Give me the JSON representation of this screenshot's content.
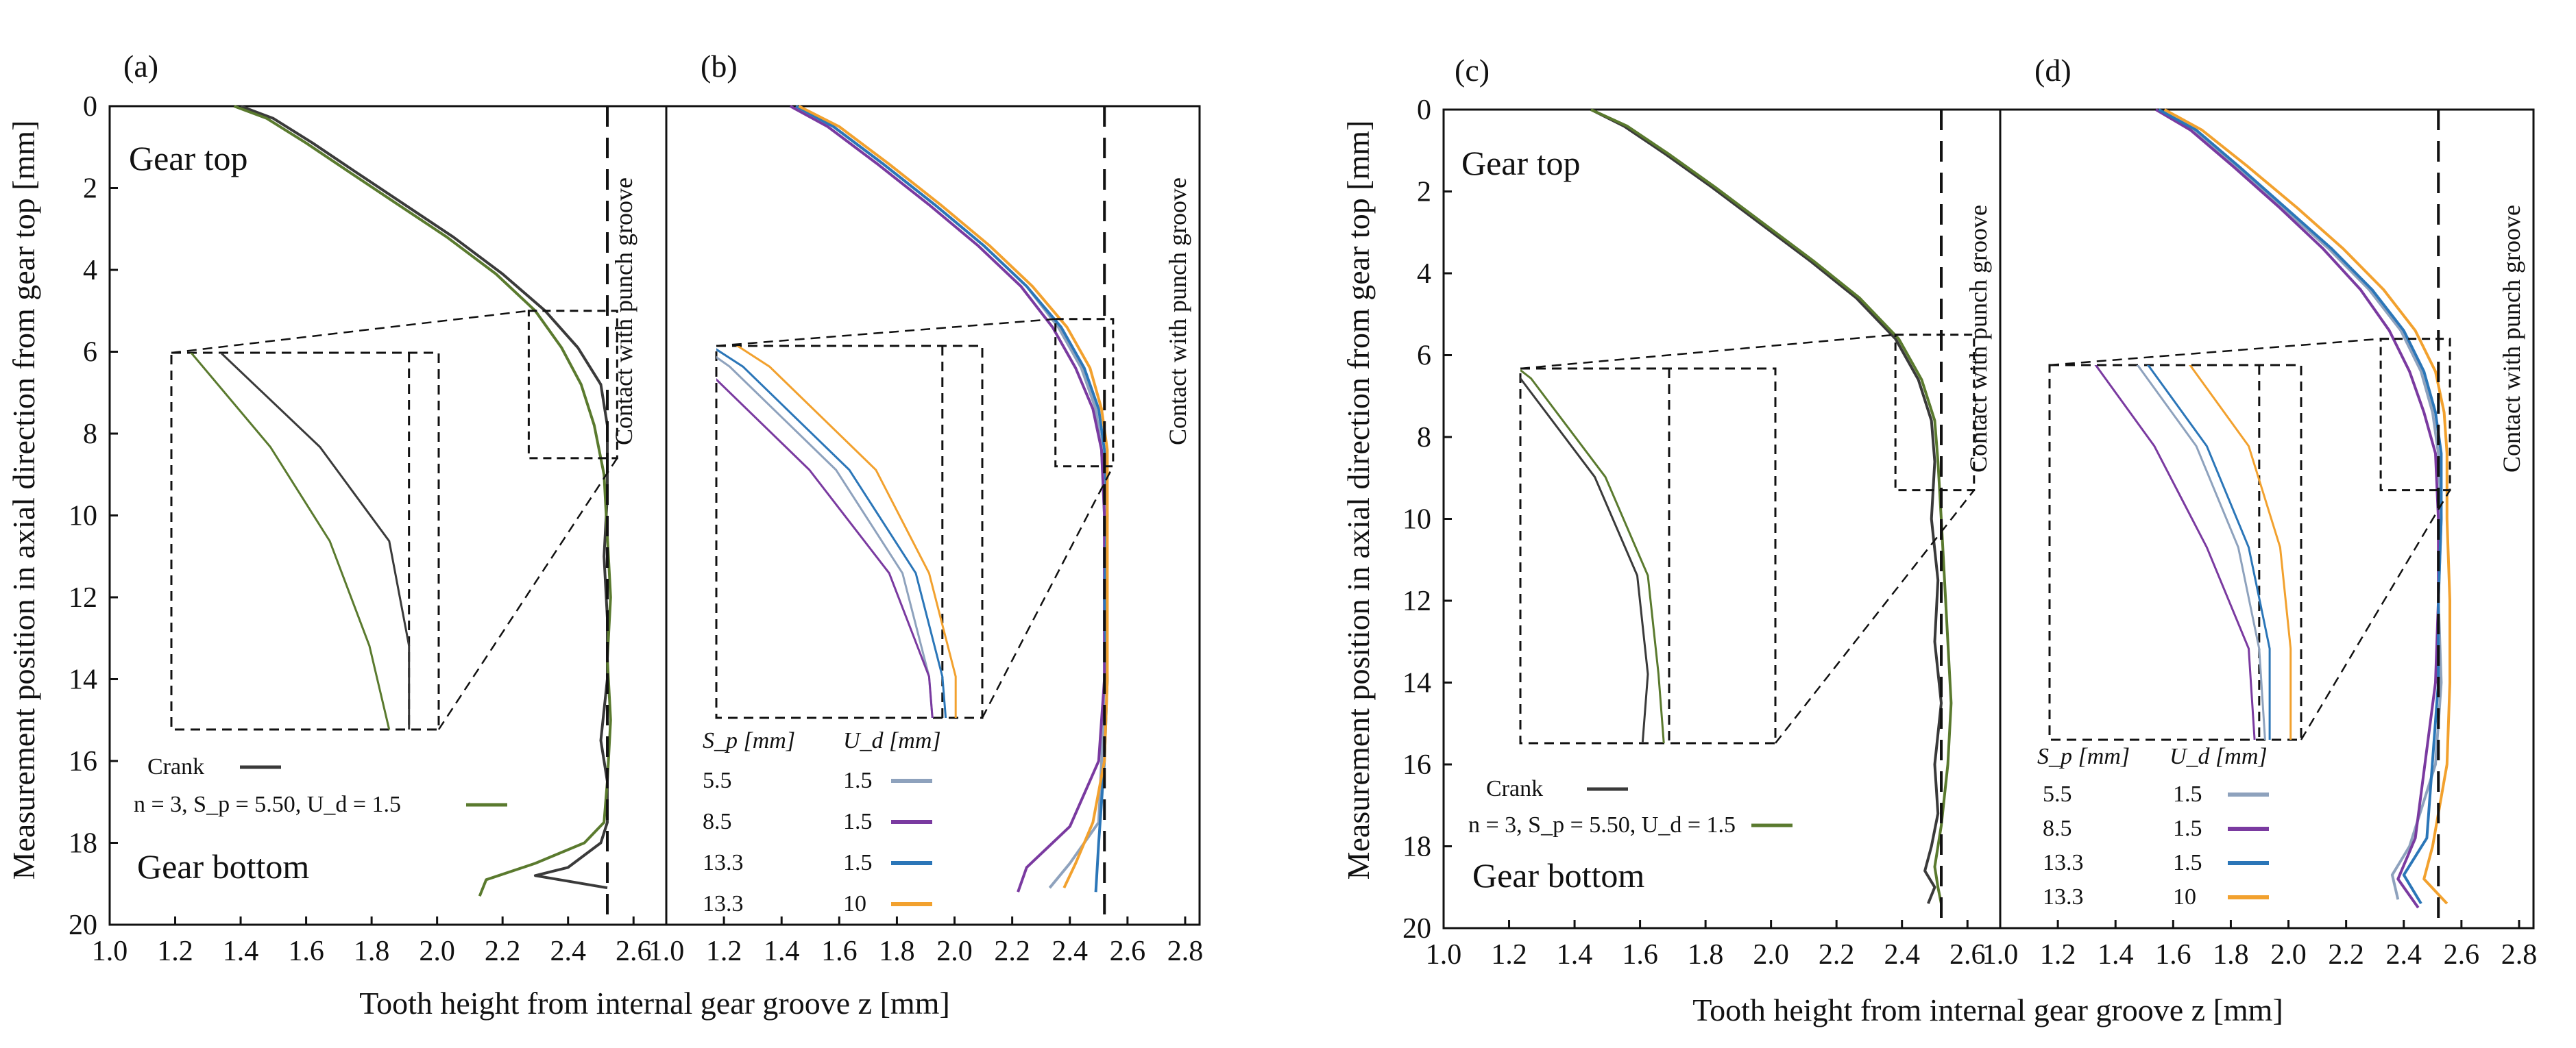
{
  "chart_data": [
    {
      "panel": "(a)",
      "type": "line",
      "xlabel": "Tooth height from internal gear groove z [mm]",
      "ylabel": "Measurement position in axial direction from gear top [mm]",
      "xlim": [
        1.0,
        2.7
      ],
      "ylim": [
        0,
        20
      ],
      "y_inverted": true,
      "xticks": [
        "1.0",
        "1.2",
        "1.4",
        "1.6",
        "1.8",
        "2.0",
        "2.2",
        "2.4",
        "2.6"
      ],
      "yticks": [
        "0",
        "2",
        "4",
        "6",
        "8",
        "10",
        "12",
        "14",
        "16",
        "18",
        "20"
      ],
      "top_annotation": "Gear top",
      "bottom_annotation": "Gear bottom",
      "contact_label": "Contact with punch groove",
      "contact_line_x": 2.52,
      "series": [
        {
          "name": "Crank",
          "color": "#3a3a3a",
          "x": [
            1.4,
            1.5,
            1.62,
            1.75,
            1.9,
            2.05,
            2.2,
            2.33,
            2.43,
            2.5,
            2.52,
            2.52,
            2.51,
            2.52,
            2.52,
            2.5,
            2.52,
            2.52,
            2.5,
            2.4,
            2.3,
            2.52
          ],
          "y": [
            0,
            0.3,
            0.9,
            1.6,
            2.4,
            3.2,
            4.1,
            5.0,
            5.9,
            6.8,
            7.8,
            9.5,
            11,
            12.5,
            14,
            15.5,
            16.5,
            17.5,
            18.0,
            18.6,
            18.8,
            19.1
          ]
        },
        {
          "name": "n = 3, S_p = 5.50, U_d = 1.5",
          "color": "#5a7a2e",
          "x": [
            1.38,
            1.48,
            1.6,
            1.73,
            1.88,
            2.03,
            2.18,
            2.3,
            2.38,
            2.44,
            2.48,
            2.51,
            2.52,
            2.53,
            2.52,
            2.53,
            2.52,
            2.51,
            2.45,
            2.3,
            2.15,
            2.13
          ],
          "y": [
            0,
            0.3,
            0.9,
            1.6,
            2.4,
            3.2,
            4.1,
            5.0,
            5.9,
            6.8,
            7.8,
            9.0,
            10.5,
            12,
            13.5,
            15,
            16.5,
            17.5,
            18.0,
            18.5,
            18.9,
            19.3
          ]
        }
      ],
      "inset": {
        "source_x": [
          2.28,
          2.55
        ],
        "source_y": [
          5.0,
          8.6
        ]
      },
      "legend": [
        {
          "label": "Crank",
          "color": "#3a3a3a"
        },
        {
          "label": "n = 3, S_p = 5.50, U_d = 1.5",
          "color": "#5a7a2e"
        }
      ]
    },
    {
      "panel": "(b)",
      "type": "line",
      "xlabel": "Tooth height from internal gear groove z [mm]",
      "xlim": [
        1.0,
        2.85
      ],
      "ylim": [
        0,
        20
      ],
      "y_inverted": true,
      "xticks": [
        "1.0",
        "1.2",
        "1.4",
        "1.6",
        "1.8",
        "2.0",
        "2.2",
        "2.4",
        "2.6",
        "2.8"
      ],
      "contact_label": "Contact with punch groove",
      "contact_line_x": 2.52,
      "legend_head_sp": "S_p [mm]",
      "legend_head_ud": "U_d [mm]",
      "series": [
        {
          "name": "5.5 / 1.5",
          "sp": "5.5",
          "ud": "1.5",
          "color": "#8ea2bd",
          "x": [
            1.45,
            1.58,
            1.75,
            1.93,
            2.1,
            2.25,
            2.36,
            2.44,
            2.49,
            2.51,
            2.52,
            2.52,
            2.52,
            2.51,
            2.5,
            2.4,
            2.33
          ],
          "y": [
            0,
            0.5,
            1.4,
            2.4,
            3.4,
            4.4,
            5.4,
            6.4,
            7.4,
            8.4,
            10,
            12,
            14,
            16,
            17.5,
            18.5,
            19.1
          ]
        },
        {
          "name": "8.5 / 1.5",
          "sp": "8.5",
          "ud": "1.5",
          "color": "#7a3aa0",
          "x": [
            1.43,
            1.56,
            1.73,
            1.91,
            2.08,
            2.23,
            2.34,
            2.42,
            2.48,
            2.51,
            2.52,
            2.52,
            2.52,
            2.5,
            2.4,
            2.25,
            2.22
          ],
          "y": [
            0,
            0.5,
            1.4,
            2.4,
            3.4,
            4.4,
            5.4,
            6.4,
            7.4,
            8.4,
            10,
            12,
            14,
            16,
            17.6,
            18.6,
            19.2
          ]
        },
        {
          "name": "13.3 / 1.5",
          "sp": "13.3",
          "ud": "1.5",
          "color": "#2b76b8",
          "x": [
            1.45,
            1.58,
            1.75,
            1.93,
            2.1,
            2.25,
            2.37,
            2.45,
            2.5,
            2.52,
            2.53,
            2.52,
            2.53,
            2.52,
            2.5,
            2.49
          ],
          "y": [
            0,
            0.5,
            1.4,
            2.4,
            3.4,
            4.4,
            5.4,
            6.4,
            7.4,
            8.4,
            10,
            12,
            14,
            16,
            18,
            19.2
          ]
        },
        {
          "name": "13.3 / 10",
          "sp": "13.3",
          "ud": "10",
          "color": "#f2a12e",
          "x": [
            1.46,
            1.6,
            1.77,
            1.95,
            2.12,
            2.27,
            2.39,
            2.47,
            2.51,
            2.53,
            2.53,
            2.53,
            2.53,
            2.52,
            2.48,
            2.42,
            2.38
          ],
          "y": [
            0,
            0.5,
            1.4,
            2.4,
            3.4,
            4.4,
            5.4,
            6.4,
            7.4,
            8.4,
            10,
            12,
            14,
            16,
            17.5,
            18.5,
            19.1
          ]
        }
      ],
      "inset": {
        "source_x": [
          2.35,
          2.55
        ],
        "source_y": [
          5.2,
          8.8
        ]
      }
    },
    {
      "panel": "(c)",
      "type": "line",
      "xlabel": "Tooth height from internal gear groove z [mm]",
      "ylabel": "Measurement position in axial direction from gear top  [mm]",
      "xlim": [
        1.0,
        2.7
      ],
      "ylim": [
        0,
        20
      ],
      "y_inverted": true,
      "xticks": [
        "1.0",
        "1.2",
        "1.4",
        "1.6",
        "1.8",
        "2.0",
        "2.2",
        "2.4",
        "2.6"
      ],
      "yticks": [
        "0",
        "2",
        "4",
        "6",
        "8",
        "10",
        "12",
        "14",
        "16",
        "18",
        "20"
      ],
      "top_annotation": "Gear top",
      "bottom_annotation": "Gear bottom",
      "contact_label": "Contact with punch groove",
      "contact_line_x": 2.52,
      "series": [
        {
          "name": "Crank",
          "color": "#3a3a3a",
          "x": [
            1.45,
            1.55,
            1.68,
            1.82,
            1.97,
            2.12,
            2.26,
            2.38,
            2.45,
            2.49,
            2.5,
            2.49,
            2.51,
            2.5,
            2.52,
            2.5,
            2.51,
            2.49,
            2.47,
            2.5,
            2.48
          ],
          "y": [
            0,
            0.4,
            1.1,
            1.9,
            2.8,
            3.7,
            4.6,
            5.6,
            6.6,
            7.6,
            8.6,
            10,
            11.5,
            13,
            14.5,
            16,
            17.2,
            18.0,
            18.6,
            19.0,
            19.4
          ]
        },
        {
          "name": "n = 3, S_p = 5.50, U_d = 1.5",
          "color": "#5a7a2e",
          "x": [
            1.45,
            1.56,
            1.69,
            1.83,
            1.98,
            2.13,
            2.27,
            2.39,
            2.46,
            2.5,
            2.51,
            2.52,
            2.53,
            2.54,
            2.55,
            2.54,
            2.52,
            2.5,
            2.51,
            2.52
          ],
          "y": [
            0,
            0.4,
            1.1,
            1.9,
            2.8,
            3.7,
            4.6,
            5.6,
            6.6,
            7.6,
            8.6,
            10,
            11.5,
            13,
            14.5,
            16,
            17.5,
            18.5,
            19.0,
            19.4
          ]
        }
      ],
      "inset": {
        "source_x": [
          2.38,
          2.62
        ],
        "source_y": [
          5.5,
          9.3
        ]
      },
      "legend": [
        {
          "label": "Crank",
          "color": "#3a3a3a"
        },
        {
          "label": "n = 3, S_p = 5.50, U_d = 1.5",
          "color": "#5a7a2e"
        }
      ]
    },
    {
      "panel": "(d)",
      "type": "line",
      "xlabel": "Tooth height from internal gear groove z [mm]",
      "xlim": [
        1.0,
        2.85
      ],
      "ylim": [
        0,
        20
      ],
      "y_inverted": true,
      "xticks": [
        "1.0",
        "1.2",
        "1.4",
        "1.6",
        "1.8",
        "2.0",
        "2.2",
        "2.4",
        "2.6",
        "2.8"
      ],
      "contact_label": "Contact with punch groove",
      "contact_line_x": 2.52,
      "legend_head_sp": "S_p [mm]",
      "legend_head_ud": "U_d [mm]",
      "series": [
        {
          "name": "5.5 / 1.5",
          "sp": "5.5",
          "ud": "1.5",
          "color": "#8ea2bd",
          "x": [
            1.55,
            1.67,
            1.82,
            1.98,
            2.14,
            2.28,
            2.39,
            2.46,
            2.5,
            2.52,
            2.53,
            2.52,
            2.53,
            2.51,
            2.42,
            2.36,
            2.38
          ],
          "y": [
            0,
            0.5,
            1.4,
            2.4,
            3.4,
            4.4,
            5.4,
            6.4,
            7.4,
            8.4,
            10,
            12,
            14,
            16,
            18.0,
            18.7,
            19.3
          ]
        },
        {
          "name": "8.5 / 1.5",
          "sp": "8.5",
          "ud": "1.5",
          "color": "#7a3aa0",
          "x": [
            1.54,
            1.66,
            1.81,
            1.97,
            2.12,
            2.25,
            2.35,
            2.42,
            2.47,
            2.51,
            2.52,
            2.52,
            2.51,
            2.44,
            2.38,
            2.45
          ],
          "y": [
            0,
            0.5,
            1.4,
            2.4,
            3.4,
            4.4,
            5.4,
            6.4,
            7.4,
            8.4,
            10,
            12,
            14,
            17.8,
            18.8,
            19.5
          ]
        },
        {
          "name": "13.3 / 1.5",
          "sp": "13.3",
          "ud": "1.5",
          "color": "#2b76b8",
          "x": [
            1.55,
            1.68,
            1.83,
            1.99,
            2.15,
            2.29,
            2.4,
            2.47,
            2.51,
            2.53,
            2.53,
            2.52,
            2.52,
            2.48,
            2.4,
            2.46
          ],
          "y": [
            0,
            0.5,
            1.4,
            2.4,
            3.4,
            4.4,
            5.4,
            6.4,
            7.4,
            8.4,
            10,
            12,
            14,
            17.8,
            18.7,
            19.4
          ]
        },
        {
          "name": "13.3 / 10",
          "sp": "13.3",
          "ud": "10",
          "color": "#f2a12e",
          "x": [
            1.57,
            1.7,
            1.86,
            2.03,
            2.19,
            2.33,
            2.44,
            2.51,
            2.54,
            2.55,
            2.55,
            2.56,
            2.56,
            2.55,
            2.5,
            2.47,
            2.55
          ],
          "y": [
            0,
            0.5,
            1.4,
            2.4,
            3.4,
            4.4,
            5.4,
            6.4,
            7.4,
            8.4,
            10,
            12,
            14,
            16,
            18,
            18.8,
            19.4
          ]
        }
      ],
      "inset": {
        "source_x": [
          2.32,
          2.56
        ],
        "source_y": [
          5.6,
          9.3
        ]
      }
    }
  ]
}
